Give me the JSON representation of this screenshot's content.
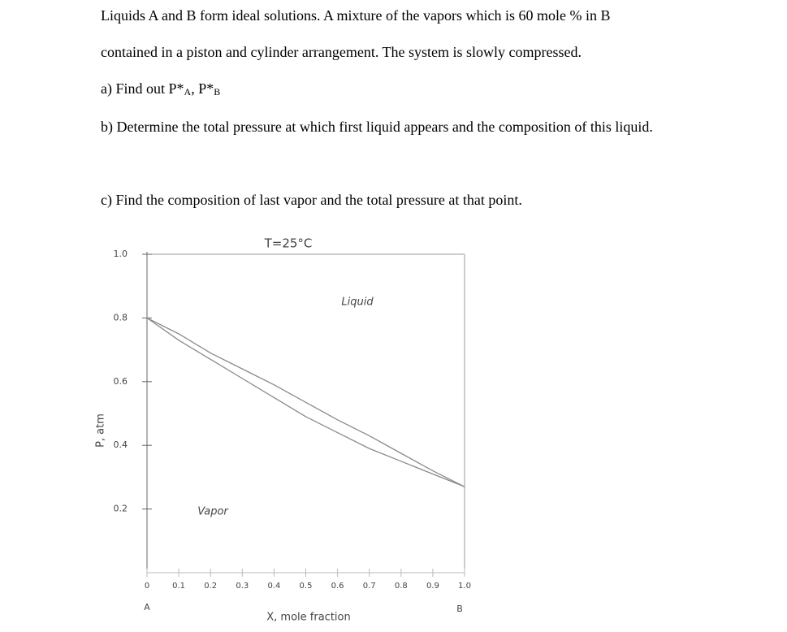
{
  "document": {
    "paragraphs": [
      [
        "Liquids A and B form ideal solutions. A mixture of the vapors which is 60 mole % in B"
      ],
      [
        "contained in a piston and cylinder arrangement. The system is slowly compressed."
      ],
      [
        "a) Find out P*",
        "A",
        ", P*",
        "B"
      ],
      [
        "b) Determine the total pressure at which first liquid appears and the composition of this liquid."
      ],
      [
        "c) Find the composition of last vapor and the total pressure at that point."
      ]
    ]
  },
  "chart_data": {
    "type": "line",
    "title": "T=25°C",
    "y_label": "P, atm",
    "x_label": "X, mole fraction",
    "x_end_labels": [
      "A",
      "B"
    ],
    "x": [
      0,
      0.1,
      0.2,
      0.3,
      0.4,
      0.5,
      0.6,
      0.7,
      0.8,
      0.9,
      1
    ],
    "series": [
      {
        "name": "Liquid",
        "color": "#8a8a8a",
        "values": [
          0.8,
          0.75,
          0.69,
          0.64,
          0.59,
          0.535,
          0.48,
          0.43,
          0.375,
          0.32,
          0.27
        ]
      },
      {
        "name": "Vapor",
        "color": "#8a8a8a",
        "values": [
          0.8,
          0.73,
          0.67,
          0.61,
          0.55,
          0.49,
          0.44,
          0.39,
          0.35,
          0.31,
          0.27
        ]
      }
    ],
    "xlim": [
      0,
      1
    ],
    "ylim": [
      0,
      1
    ],
    "xticks": [
      0,
      0.1,
      0.2,
      0.3,
      0.4,
      0.5,
      0.6,
      0.7,
      0.8,
      0.9,
      {
        "value": 1,
        "label": "1.0"
      }
    ],
    "yticks": [
      0.2,
      0.4,
      0.6,
      0.8,
      {
        "value": 1,
        "label": "1.0"
      }
    ],
    "grid": false
  }
}
